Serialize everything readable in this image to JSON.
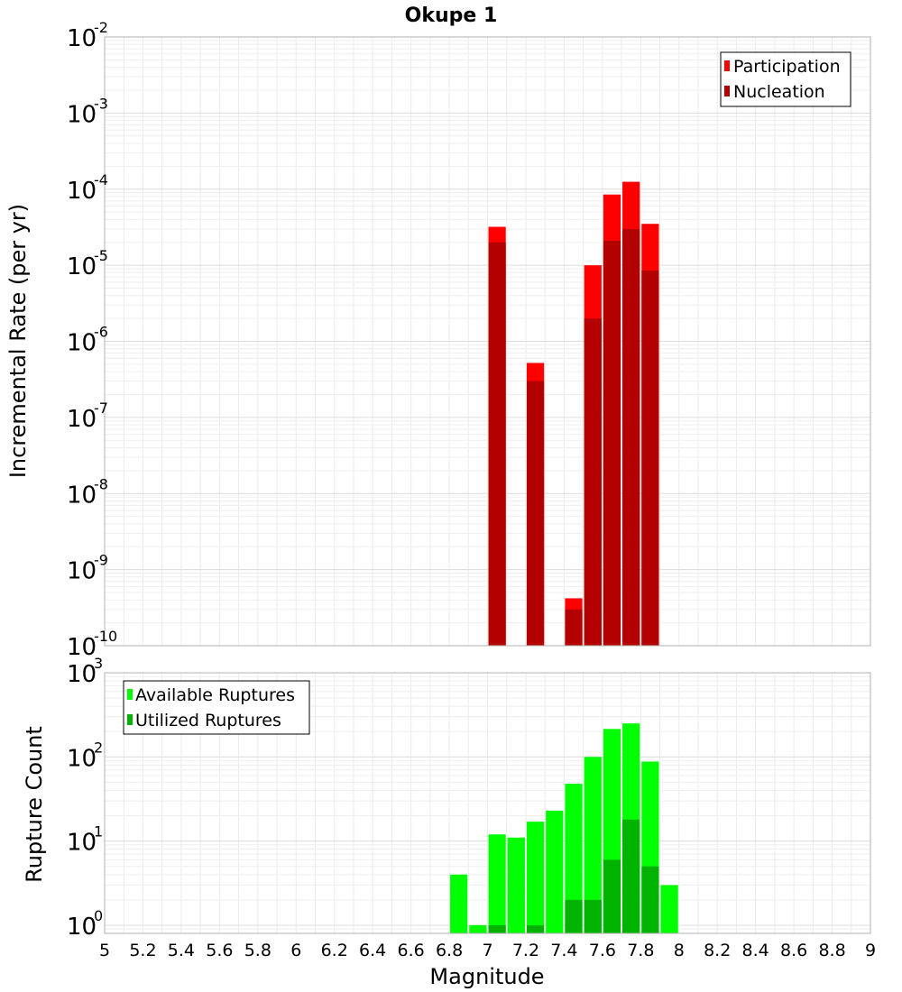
{
  "chart_data": {
    "type": "bar",
    "title": "Okupe 1",
    "xlabel": "Magnitude",
    "x_range": [
      5,
      9
    ],
    "x_ticks": [
      5,
      5.2,
      5.4,
      5.6,
      5.8,
      6,
      6.2,
      6.4,
      6.6,
      6.8,
      7,
      7.2,
      7.4,
      7.6,
      7.8,
      8,
      8.2,
      8.4,
      8.6,
      8.8,
      9
    ],
    "x_tick_labels": [
      "5",
      "5.2",
      "5.4",
      "5.6",
      "5.8",
      "6",
      "6.2",
      "6.4",
      "6.6",
      "6.8",
      "7",
      "7.2",
      "7.4",
      "7.6",
      "7.8",
      "8",
      "8.2",
      "8.4",
      "8.6",
      "8.8",
      "9"
    ],
    "bin_width": 0.1,
    "panels": [
      {
        "id": "rate",
        "ylabel": "Incremental Rate (per yr)",
        "yscale": "log",
        "ylim": [
          1e-10,
          0.01
        ],
        "y_ticks": [
          {
            "exp": "-10",
            "value": 1e-10
          },
          {
            "exp": "-9",
            "value": 1e-09
          },
          {
            "exp": "-8",
            "value": 1e-08
          },
          {
            "exp": "-7",
            "value": 1e-07
          },
          {
            "exp": "-6",
            "value": 1e-06
          },
          {
            "exp": "-5",
            "value": 1e-05
          },
          {
            "exp": "-4",
            "value": 0.0001
          },
          {
            "exp": "-3",
            "value": 0.001
          },
          {
            "exp": "-2",
            "value": 0.01
          }
        ],
        "legend_position": "top-right",
        "series": [
          {
            "name": "Participation",
            "color": "#ff0000",
            "points": [
              {
                "x": 7.05,
                "y": 3.2e-05
              },
              {
                "x": 7.25,
                "y": 5.2e-07
              },
              {
                "x": 7.45,
                "y": 4.2e-10
              },
              {
                "x": 7.55,
                "y": 1e-05
              },
              {
                "x": 7.65,
                "y": 8.5e-05
              },
              {
                "x": 7.75,
                "y": 0.000125
              },
              {
                "x": 7.85,
                "y": 3.5e-05
              }
            ]
          },
          {
            "name": "Nucleation",
            "color": "#b30000",
            "points": [
              {
                "x": 7.05,
                "y": 2e-05
              },
              {
                "x": 7.25,
                "y": 3e-07
              },
              {
                "x": 7.45,
                "y": 3e-10
              },
              {
                "x": 7.55,
                "y": 2e-06
              },
              {
                "x": 7.65,
                "y": 2.1e-05
              },
              {
                "x": 7.75,
                "y": 3e-05
              },
              {
                "x": 7.85,
                "y": 8.5e-06
              }
            ]
          }
        ]
      },
      {
        "id": "count",
        "ylabel": "Rupture Count",
        "yscale": "log",
        "ylim": [
          0.8,
          1000
        ],
        "y_ticks": [
          {
            "exp": "0",
            "value": 1
          },
          {
            "exp": "1",
            "value": 10
          },
          {
            "exp": "2",
            "value": 100
          },
          {
            "exp": "3",
            "value": 1000
          }
        ],
        "legend_position": "top-left",
        "series": [
          {
            "name": "Available Ruptures",
            "color": "#00ff00",
            "points": [
              {
                "x": 6.85,
                "y": 4
              },
              {
                "x": 6.95,
                "y": 1
              },
              {
                "x": 7.05,
                "y": 12
              },
              {
                "x": 7.15,
                "y": 11
              },
              {
                "x": 7.25,
                "y": 17
              },
              {
                "x": 7.35,
                "y": 23
              },
              {
                "x": 7.45,
                "y": 48
              },
              {
                "x": 7.55,
                "y": 100
              },
              {
                "x": 7.65,
                "y": 215
              },
              {
                "x": 7.75,
                "y": 250
              },
              {
                "x": 7.85,
                "y": 88
              },
              {
                "x": 7.95,
                "y": 3
              }
            ]
          },
          {
            "name": "Utilized Ruptures",
            "color": "#00b300",
            "points": [
              {
                "x": 7.05,
                "y": 1
              },
              {
                "x": 7.25,
                "y": 1
              },
              {
                "x": 7.45,
                "y": 2
              },
              {
                "x": 7.55,
                "y": 2
              },
              {
                "x": 7.65,
                "y": 6
              },
              {
                "x": 7.75,
                "y": 18
              },
              {
                "x": 7.85,
                "y": 5
              }
            ]
          }
        ]
      }
    ]
  }
}
